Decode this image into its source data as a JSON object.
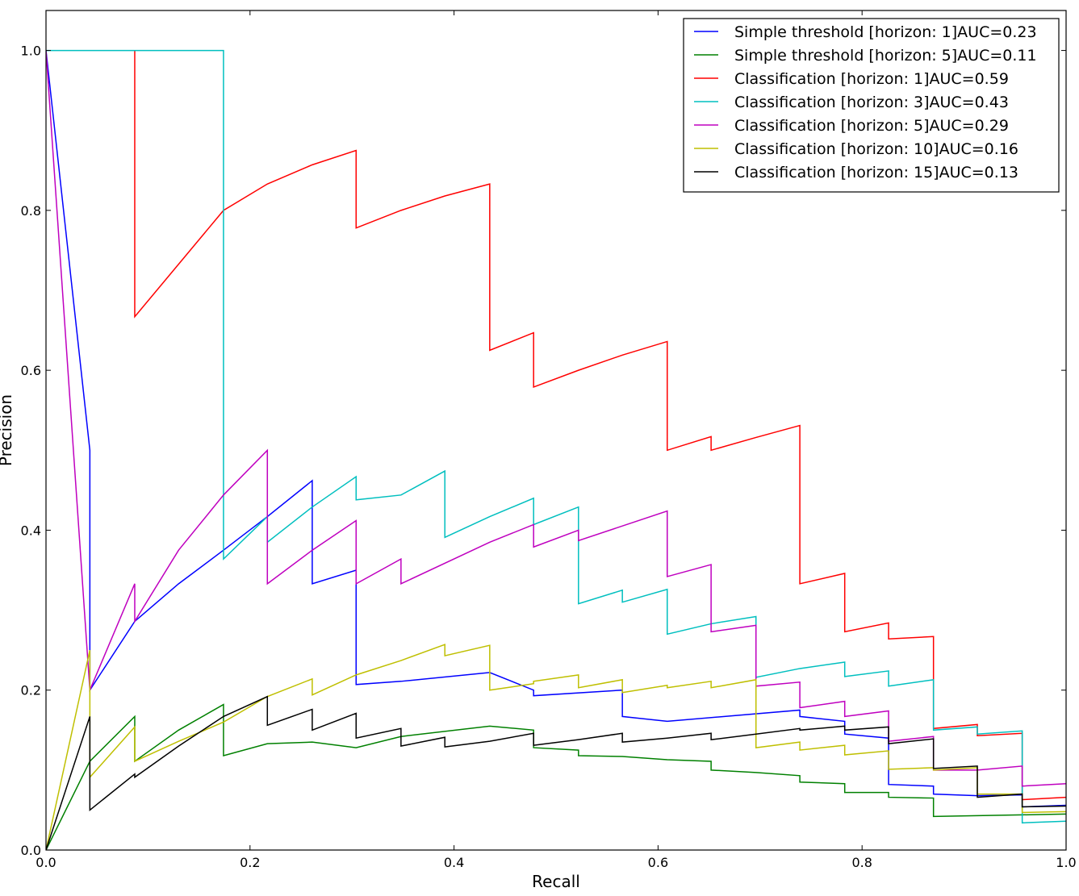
{
  "chart_data": {
    "type": "line",
    "title": "",
    "xlabel": "Recall",
    "ylabel": "Precision",
    "xlim": [
      0.0,
      1.0
    ],
    "ylim": [
      0.0,
      1.05
    ],
    "xticks": [
      0.0,
      0.2,
      0.4,
      0.6,
      0.8,
      1.0
    ],
    "xtick_labels": [
      "0.0",
      "0.2",
      "0.4",
      "0.6",
      "0.8",
      "1.0"
    ],
    "yticks": [
      0.0,
      0.2,
      0.4,
      0.6,
      0.8,
      1.0
    ],
    "ytick_labels": [
      "0.0",
      "0.2",
      "0.4",
      "0.6",
      "0.8",
      "1.0"
    ],
    "grid": false,
    "legend_position": "top-right",
    "series": [
      {
        "name": "Simple threshold [horizon: 1]AUC=0.23",
        "color": "#0000ff",
        "x": [
          0.0,
          0.043,
          0.043,
          0.043,
          0.087,
          0.13,
          0.174,
          0.217,
          0.261,
          0.261,
          0.304,
          0.304,
          0.348,
          0.435,
          0.478,
          0.478,
          0.565,
          0.565,
          0.609,
          0.739,
          0.739,
          0.783,
          0.783,
          0.826,
          0.826,
          0.87,
          0.87,
          0.913,
          0.913,
          0.957,
          0.957,
          1.0
        ],
        "y": [
          1.0,
          0.5,
          0.2,
          0.2,
          0.286,
          0.333,
          0.375,
          0.417,
          0.462,
          0.333,
          0.35,
          0.207,
          0.211,
          0.222,
          0.2,
          0.193,
          0.2,
          0.167,
          0.161,
          0.175,
          0.167,
          0.161,
          0.145,
          0.14,
          0.082,
          0.08,
          0.07,
          0.068,
          0.068,
          0.069,
          0.054,
          0.056
        ]
      },
      {
        "name": "Simple threshold [horizon: 5]AUC=0.11",
        "color": "#008000",
        "x": [
          0.0,
          0.043,
          0.087,
          0.087,
          0.13,
          0.174,
          0.174,
          0.217,
          0.261,
          0.304,
          0.348,
          0.435,
          0.478,
          0.478,
          0.522,
          0.522,
          0.565,
          0.609,
          0.652,
          0.652,
          0.696,
          0.739,
          0.739,
          0.783,
          0.783,
          0.826,
          0.826,
          0.87,
          0.87,
          0.913,
          0.957,
          1.0
        ],
        "y": [
          0.0,
          0.111,
          0.167,
          0.111,
          0.15,
          0.182,
          0.118,
          0.133,
          0.135,
          0.128,
          0.142,
          0.155,
          0.15,
          0.128,
          0.125,
          0.118,
          0.117,
          0.113,
          0.111,
          0.1,
          0.097,
          0.093,
          0.085,
          0.083,
          0.072,
          0.072,
          0.066,
          0.065,
          0.042,
          0.043,
          0.044,
          0.045
        ]
      },
      {
        "name": "Classification [horizon: 1]AUC=0.59",
        "color": "#ff0000",
        "x": [
          0.087,
          0.087,
          0.087,
          0.174,
          0.217,
          0.261,
          0.304,
          0.304,
          0.348,
          0.391,
          0.435,
          0.435,
          0.478,
          0.478,
          0.522,
          0.565,
          0.609,
          0.609,
          0.652,
          0.652,
          0.696,
          0.739,
          0.739,
          0.783,
          0.783,
          0.826,
          0.826,
          0.87,
          0.87,
          0.913,
          0.913,
          0.957,
          0.957,
          1.0
        ],
        "y": [
          1.0,
          1.0,
          0.667,
          0.8,
          0.833,
          0.857,
          0.875,
          0.778,
          0.8,
          0.818,
          0.833,
          0.625,
          0.647,
          0.579,
          0.6,
          0.619,
          0.636,
          0.5,
          0.517,
          0.5,
          0.516,
          0.531,
          0.333,
          0.346,
          0.273,
          0.284,
          0.264,
          0.267,
          0.152,
          0.157,
          0.143,
          0.146,
          0.063,
          0.066
        ]
      },
      {
        "name": "Classification [horizon: 3]AUC=0.43",
        "color": "#00bfbf",
        "x": [
          0.0,
          0.043,
          0.087,
          0.13,
          0.174,
          0.174,
          0.217,
          0.217,
          0.261,
          0.304,
          0.304,
          0.348,
          0.391,
          0.391,
          0.435,
          0.478,
          0.478,
          0.522,
          0.522,
          0.565,
          0.565,
          0.609,
          0.609,
          0.652,
          0.696,
          0.696,
          0.739,
          0.783,
          0.783,
          0.826,
          0.826,
          0.87,
          0.87,
          0.913,
          0.913,
          0.957,
          0.957,
          1.0
        ],
        "y": [
          1.0,
          1.0,
          1.0,
          1.0,
          1.0,
          0.364,
          0.417,
          0.385,
          0.429,
          0.467,
          0.438,
          0.444,
          0.474,
          0.391,
          0.417,
          0.44,
          0.407,
          0.429,
          0.308,
          0.325,
          0.31,
          0.326,
          0.27,
          0.283,
          0.292,
          0.216,
          0.227,
          0.235,
          0.217,
          0.224,
          0.205,
          0.213,
          0.15,
          0.154,
          0.145,
          0.149,
          0.034,
          0.036
        ]
      },
      {
        "name": "Classification [horizon: 5]AUC=0.29",
        "color": "#bf00bf",
        "x": [
          0.0,
          0.043,
          0.087,
          0.087,
          0.13,
          0.174,
          0.217,
          0.217,
          0.261,
          0.304,
          0.304,
          0.348,
          0.348,
          0.435,
          0.478,
          0.478,
          0.522,
          0.522,
          0.609,
          0.609,
          0.652,
          0.652,
          0.696,
          0.696,
          0.739,
          0.739,
          0.783,
          0.783,
          0.826,
          0.826,
          0.87,
          0.87,
          0.913,
          0.957,
          0.957,
          1.0
        ],
        "y": [
          1.0,
          0.2,
          0.333,
          0.286,
          0.375,
          0.444,
          0.5,
          0.333,
          0.375,
          0.412,
          0.333,
          0.364,
          0.333,
          0.385,
          0.407,
          0.379,
          0.4,
          0.387,
          0.424,
          0.342,
          0.357,
          0.273,
          0.281,
          0.205,
          0.21,
          0.178,
          0.186,
          0.167,
          0.174,
          0.136,
          0.142,
          0.1,
          0.1,
          0.105,
          0.08,
          0.083
        ]
      },
      {
        "name": "Classification [horizon: 10]AUC=0.16",
        "color": "#bfbf00",
        "x": [
          0.0,
          0.043,
          0.043,
          0.087,
          0.087,
          0.13,
          0.174,
          0.217,
          0.261,
          0.261,
          0.304,
          0.348,
          0.391,
          0.391,
          0.435,
          0.435,
          0.478,
          0.478,
          0.522,
          0.522,
          0.565,
          0.565,
          0.609,
          0.609,
          0.652,
          0.652,
          0.696,
          0.696,
          0.739,
          0.739,
          0.783,
          0.783,
          0.826,
          0.826,
          0.87,
          0.87,
          0.913,
          0.913,
          0.957,
          0.957,
          1.0
        ],
        "y": [
          0.0,
          0.25,
          0.091,
          0.154,
          0.111,
          0.136,
          0.16,
          0.192,
          0.214,
          0.194,
          0.219,
          0.237,
          0.257,
          0.243,
          0.256,
          0.2,
          0.208,
          0.211,
          0.219,
          0.203,
          0.213,
          0.197,
          0.206,
          0.203,
          0.211,
          0.203,
          0.213,
          0.128,
          0.135,
          0.125,
          0.131,
          0.119,
          0.124,
          0.101,
          0.103,
          0.1,
          0.103,
          0.07,
          0.07,
          0.047,
          0.048
        ]
      },
      {
        "name": "Classification [horizon: 15]AUC=0.13",
        "color": "#000000",
        "x": [
          0.0,
          0.043,
          0.043,
          0.087,
          0.087,
          0.13,
          0.174,
          0.217,
          0.217,
          0.261,
          0.261,
          0.304,
          0.304,
          0.348,
          0.348,
          0.391,
          0.391,
          0.435,
          0.478,
          0.478,
          0.522,
          0.565,
          0.565,
          0.609,
          0.652,
          0.652,
          0.696,
          0.739,
          0.739,
          0.783,
          0.783,
          0.826,
          0.826,
          0.87,
          0.87,
          0.913,
          0.913,
          0.957,
          0.957,
          1.0
        ],
        "y": [
          0.0,
          0.167,
          0.05,
          0.095,
          0.091,
          0.13,
          0.167,
          0.192,
          0.156,
          0.176,
          0.15,
          0.171,
          0.14,
          0.152,
          0.13,
          0.141,
          0.129,
          0.136,
          0.146,
          0.131,
          0.138,
          0.146,
          0.135,
          0.14,
          0.146,
          0.138,
          0.145,
          0.152,
          0.15,
          0.155,
          0.15,
          0.154,
          0.133,
          0.139,
          0.102,
          0.105,
          0.066,
          0.07,
          0.054,
          0.055
        ]
      }
    ]
  }
}
